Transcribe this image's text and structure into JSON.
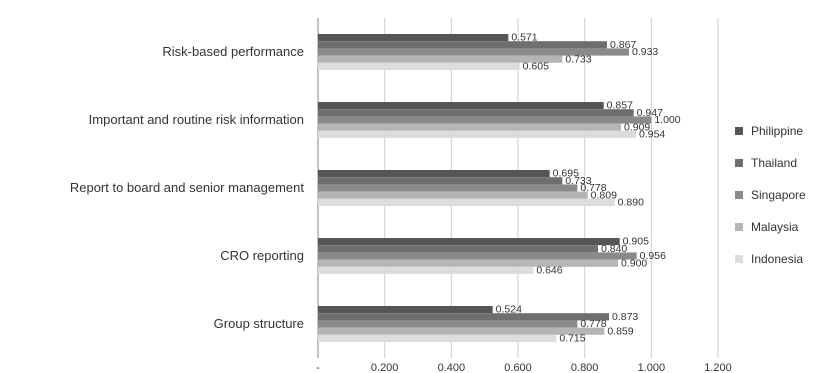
{
  "chart_data": {
    "type": "bar",
    "orientation": "horizontal",
    "categories": [
      "Risk-based performance",
      "Important and routine risk information",
      "Report to board and senior management",
      "CRO reporting",
      "Group structure"
    ],
    "series": [
      {
        "name": "Philippine",
        "color": "#555555",
        "values": [
          0.571,
          0.857,
          0.695,
          0.905,
          0.524
        ]
      },
      {
        "name": "Thailand",
        "color": "#6e6e6e",
        "values": [
          0.867,
          0.947,
          0.733,
          0.84,
          0.873
        ]
      },
      {
        "name": "Singapore",
        "color": "#8a8a8a",
        "values": [
          0.933,
          1.0,
          0.778,
          0.956,
          0.778
        ]
      },
      {
        "name": "Malaysia",
        "color": "#b5b5b5",
        "values": [
          0.733,
          0.909,
          0.809,
          0.9,
          0.859
        ]
      },
      {
        "name": "Indonesia",
        "color": "#dcdcdc",
        "values": [
          0.605,
          0.954,
          0.89,
          0.646,
          0.715
        ]
      }
    ],
    "x_ticks": [
      "-",
      "0.200",
      "0.400",
      "0.600",
      "0.800",
      "1.000",
      "1.200"
    ],
    "xlim": [
      0,
      1.2
    ],
    "grid": true,
    "legend_position": "right"
  }
}
